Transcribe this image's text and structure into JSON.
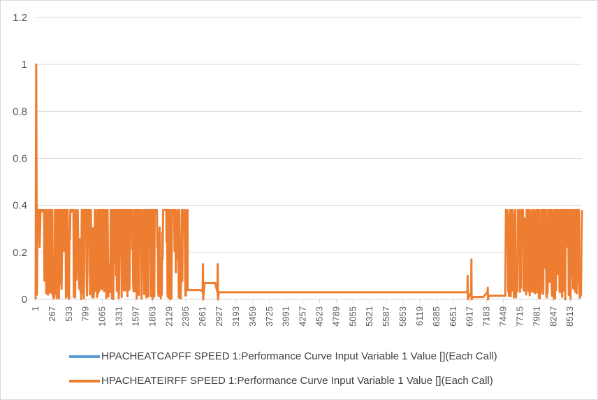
{
  "chart_data": {
    "type": "line",
    "title": "",
    "xlabel": "",
    "ylabel": "",
    "ylim": [
      0,
      1.2
    ],
    "y_ticks": [
      "0",
      "0.2",
      "0.4",
      "0.6",
      "0.8",
      "1",
      "1.2"
    ],
    "x_range": [
      1,
      8700
    ],
    "x_tick_labels": [
      "1",
      "267",
      "533",
      "799",
      "1065",
      "1331",
      "1597",
      "1863",
      "2129",
      "2395",
      "2661",
      "2927",
      "3193",
      "3459",
      "3725",
      "3991",
      "4257",
      "4523",
      "4789",
      "5055",
      "5321",
      "5587",
      "5853",
      "6119",
      "6385",
      "6651",
      "6917",
      "7183",
      "7449",
      "7715",
      "7981",
      "8247",
      "8513"
    ],
    "grid": true,
    "legend_position": "bottom",
    "series": [
      {
        "name": "HPACHEATCAPFF SPEED 1:Performance Curve Input Variable 1 Value [](Each Call)",
        "color": "#5b9bd5",
        "visible_in_plot": false
      },
      {
        "name": "HPACHEATEIRFF SPEED 1:Performance Curve Input Variable 1 Value [](Each Call)",
        "color": "#ed7d31",
        "baseline_segments": [
          {
            "x": [
              2420,
              2640
            ],
            "y": 0.04
          },
          {
            "x": [
              2690,
              2860
            ],
            "y": 0.07
          },
          {
            "x": [
              2920,
              6860
            ],
            "y": 0.03
          },
          {
            "x": [
              6960,
              7130
            ],
            "y": 0.01
          },
          {
            "x": [
              7220,
              7480
            ],
            "y": 0.015
          }
        ],
        "spikes": [
          {
            "x": 2665,
            "y": 0.15
          },
          {
            "x": 2900,
            "y": 0.15
          },
          {
            "x": 6880,
            "y": 0.1
          },
          {
            "x": 6940,
            "y": 0.17
          },
          {
            "x": 7200,
            "y": 0.05
          }
        ],
        "peak": {
          "x": 10,
          "y": 1.0
        },
        "dense_regions": [
          {
            "x": [
              30,
              1140
            ],
            "max": 0.38,
            "min": 0.0
          },
          {
            "x": [
              1140,
              2150
            ],
            "max": 0.38,
            "min": 0.0
          },
          {
            "x": [
              2150,
              2420
            ],
            "max": 0.38,
            "min": 0.0
          },
          {
            "x": [
              7490,
              8700
            ],
            "max": 0.38,
            "min": 0.0
          }
        ]
      }
    ]
  }
}
